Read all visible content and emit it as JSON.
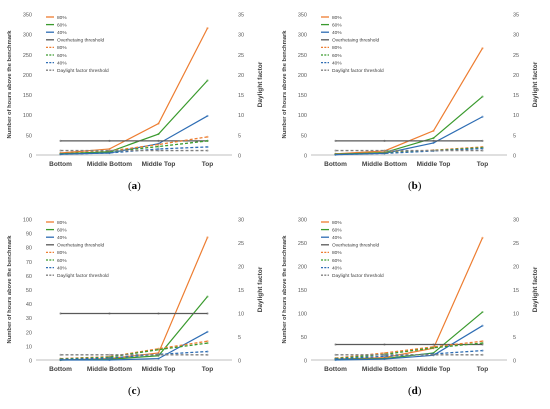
{
  "chart_data": [
    {
      "panel": "a",
      "caption_paren_open": "(",
      "caption_letter": "a",
      "caption_paren_close": ")",
      "type": "line",
      "categories": [
        "Bottom",
        "Middle Bottom",
        "Middle Top",
        "Top"
      ],
      "ylabel": "Number of hours above the benchmark",
      "y2label": "Daylight factor",
      "ylim": [
        0,
        350
      ],
      "yticks": [
        0,
        50,
        100,
        150,
        200,
        250,
        300,
        350
      ],
      "y2lim": [
        0,
        35
      ],
      "y2ticks": [
        0,
        5,
        10,
        15,
        20,
        25,
        30,
        35
      ],
      "grid": false,
      "legend_placement": "top-left",
      "overheating_threshold": 35,
      "daylight_threshold": 1.1,
      "series": [
        {
          "name": "80%",
          "axis": "left",
          "color": "#ED7D31",
          "style": "solid",
          "values": [
            5,
            15,
            78,
            315
          ]
        },
        {
          "name": "60%",
          "axis": "left",
          "color": "#3A9A2E",
          "style": "solid",
          "values": [
            3,
            8,
            52,
            185
          ]
        },
        {
          "name": "40%",
          "axis": "left",
          "color": "#2E6DB4",
          "style": "solid",
          "values": [
            2,
            5,
            28,
            97
          ]
        },
        {
          "name": "Overhetaing threshold",
          "axis": "left",
          "color": "#595959",
          "style": "solid",
          "values": [
            35,
            35,
            35,
            35
          ]
        },
        {
          "name": "80%",
          "axis": "right",
          "color": "#ED7D31",
          "style": "dash",
          "values": [
            0.4,
            1.0,
            2.6,
            4.5
          ]
        },
        {
          "name": "60%",
          "axis": "right",
          "color": "#3A9A2E",
          "style": "dash",
          "values": [
            0.3,
            0.8,
            2.1,
            3.5
          ]
        },
        {
          "name": "40%",
          "axis": "right",
          "color": "#2E6DB4",
          "style": "dash",
          "values": [
            0.2,
            0.5,
            1.5,
            2.0
          ]
        },
        {
          "name": "Daylight factor threshold",
          "axis": "right",
          "color": "#808080",
          "style": "dash",
          "values": [
            1.1,
            1.1,
            1.1,
            1.1
          ]
        }
      ]
    },
    {
      "panel": "b",
      "caption_paren_open": "(",
      "caption_letter": "b",
      "caption_paren_close": ")",
      "type": "line",
      "categories": [
        "Bottom",
        "Middle Bottom",
        "Middle Top",
        "Top"
      ],
      "ylabel": "Number of hours above the benchmark",
      "y2label": "Daylight factor",
      "ylim": [
        0,
        350
      ],
      "yticks": [
        0,
        50,
        100,
        150,
        200,
        250,
        300,
        350
      ],
      "y2lim": [
        0,
        35
      ],
      "y2ticks": [
        0,
        5,
        10,
        15,
        20,
        25,
        30,
        35
      ],
      "grid": false,
      "legend_placement": "top-left",
      "overheating_threshold": 35,
      "daylight_threshold": 1.1,
      "series": [
        {
          "name": "80%",
          "axis": "left",
          "color": "#ED7D31",
          "style": "solid",
          "values": [
            3,
            10,
            60,
            265
          ]
        },
        {
          "name": "60%",
          "axis": "left",
          "color": "#3A9A2E",
          "style": "solid",
          "values": [
            2,
            6,
            42,
            145
          ]
        },
        {
          "name": "40%",
          "axis": "left",
          "color": "#2E6DB4",
          "style": "solid",
          "values": [
            1,
            4,
            30,
            95
          ]
        },
        {
          "name": "Overhetaing threshold",
          "axis": "left",
          "color": "#595959",
          "style": "solid",
          "values": [
            35,
            35,
            35,
            35
          ]
        },
        {
          "name": "80%",
          "axis": "right",
          "color": "#ED7D31",
          "style": "dash",
          "values": [
            0.3,
            0.6,
            1.2,
            2.0
          ]
        },
        {
          "name": "60%",
          "axis": "right",
          "color": "#3A9A2E",
          "style": "dash",
          "values": [
            0.2,
            0.5,
            1.1,
            1.8
          ]
        },
        {
          "name": "40%",
          "axis": "right",
          "color": "#2E6DB4",
          "style": "dash",
          "values": [
            0.1,
            0.4,
            1.0,
            1.6
          ]
        },
        {
          "name": "Daylight factor threshold",
          "axis": "right",
          "color": "#808080",
          "style": "dash",
          "values": [
            1.1,
            1.1,
            1.1,
            1.1
          ]
        }
      ]
    },
    {
      "panel": "c",
      "caption_paren_open": "(",
      "caption_letter": "c",
      "caption_paren_close": ")",
      "type": "line",
      "categories": [
        "Bottom",
        "Middle Bottom",
        "Middle Top",
        "Top"
      ],
      "ylabel": "Number of hours above the benchmark",
      "y2label": "Daylight factor",
      "ylim": [
        0,
        100
      ],
      "yticks": [
        0,
        10,
        20,
        30,
        40,
        50,
        60,
        70,
        80,
        90,
        100
      ],
      "y2lim": [
        0,
        30
      ],
      "y2ticks": [
        0,
        5,
        10,
        15,
        20,
        25,
        30
      ],
      "grid": false,
      "legend_placement": "top-left",
      "overheating_threshold": 33,
      "daylight_threshold": 1.1,
      "series": [
        {
          "name": "80%",
          "axis": "left",
          "color": "#ED7D31",
          "style": "solid",
          "values": [
            0,
            1,
            5,
            87
          ]
        },
        {
          "name": "60%",
          "axis": "left",
          "color": "#3A9A2E",
          "style": "solid",
          "values": [
            0,
            0.5,
            3,
            45
          ]
        },
        {
          "name": "40%",
          "axis": "left",
          "color": "#2E6DB4",
          "style": "solid",
          "values": [
            0,
            0,
            1,
            20
          ]
        },
        {
          "name": "Overhetaing threshold",
          "axis": "left",
          "color": "#595959",
          "style": "solid",
          "values": [
            33,
            33,
            33,
            33
          ]
        },
        {
          "name": "80%",
          "axis": "right",
          "color": "#ED7D31",
          "style": "dash",
          "values": [
            0.3,
            0.7,
            2.4,
            4.0
          ]
        },
        {
          "name": "60%",
          "axis": "right",
          "color": "#3A9A2E",
          "style": "dash",
          "values": [
            0.2,
            0.6,
            2.2,
            3.6
          ]
        },
        {
          "name": "40%",
          "axis": "right",
          "color": "#2E6DB4",
          "style": "dash",
          "values": [
            0.1,
            0.4,
            1.2,
            1.8
          ]
        },
        {
          "name": "Daylight factor threshold",
          "axis": "right",
          "color": "#808080",
          "style": "dash",
          "values": [
            1.1,
            1.1,
            1.1,
            1.1
          ]
        }
      ]
    },
    {
      "panel": "d",
      "caption_paren_open": "(",
      "caption_letter": "d",
      "caption_paren_close": ")",
      "type": "line",
      "categories": [
        "Bottom",
        "Middle Bottom",
        "Middle Top",
        "Top"
      ],
      "ylabel": "Number of hours above the benchmark",
      "y2label": "Daylight factor",
      "ylim": [
        0,
        300
      ],
      "yticks": [
        0,
        50,
        100,
        150,
        200,
        250,
        300
      ],
      "y2lim": [
        0,
        30
      ],
      "y2ticks": [
        0,
        5,
        10,
        15,
        20,
        25,
        30
      ],
      "grid": false,
      "legend_placement": "top-left",
      "overheating_threshold": 33,
      "daylight_threshold": 1.1,
      "series": [
        {
          "name": "80%",
          "axis": "left",
          "color": "#ED7D31",
          "style": "solid",
          "values": [
            2,
            5,
            25,
            260
          ]
        },
        {
          "name": "60%",
          "axis": "left",
          "color": "#3A9A2E",
          "style": "solid",
          "values": [
            1,
            3,
            15,
            102
          ]
        },
        {
          "name": "40%",
          "axis": "left",
          "color": "#2E6DB4",
          "style": "solid",
          "values": [
            0,
            2,
            10,
            73
          ]
        },
        {
          "name": "Overhetaing threshold",
          "axis": "left",
          "color": "#595959",
          "style": "solid",
          "values": [
            33,
            33,
            33,
            33
          ]
        },
        {
          "name": "80%",
          "axis": "right",
          "color": "#ED7D31",
          "style": "dash",
          "values": [
            0.4,
            1.5,
            2.8,
            4.0
          ]
        },
        {
          "name": "60%",
          "axis": "right",
          "color": "#3A9A2E",
          "style": "dash",
          "values": [
            0.3,
            1.2,
            2.6,
            3.6
          ]
        },
        {
          "name": "40%",
          "axis": "right",
          "color": "#2E6DB4",
          "style": "dash",
          "values": [
            0.2,
            0.8,
            1.3,
            2.0
          ]
        },
        {
          "name": "Daylight factor threshold",
          "axis": "right",
          "color": "#808080",
          "style": "dash",
          "values": [
            1.1,
            1.1,
            1.1,
            1.1
          ]
        }
      ]
    }
  ]
}
